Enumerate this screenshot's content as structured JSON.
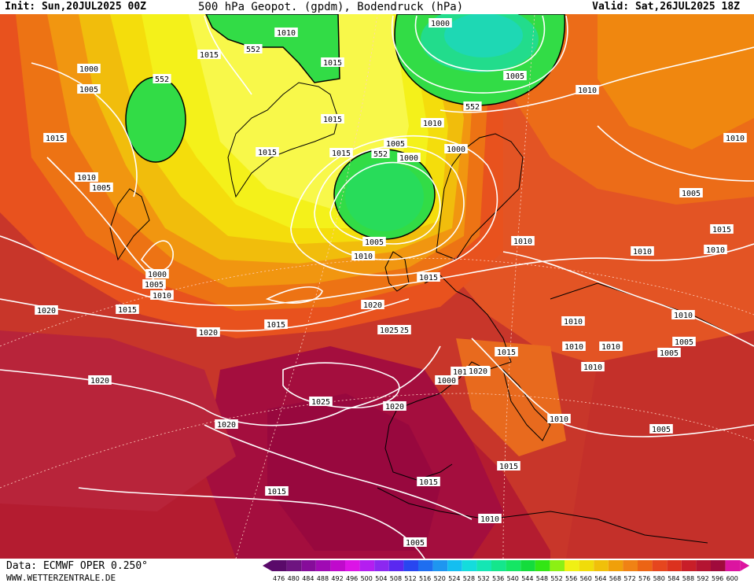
{
  "header": {
    "init": "Init: Sun,20JUL2025 00Z",
    "title": "500 hPa Geopot. (gpdm), Bodendruck (hPa)",
    "valid": "Valid: Sat,26JUL2025 18Z"
  },
  "footer": {
    "source": "Data: ECMWF OPER 0.250°",
    "website": "WWW.WETTERZENTRALE.DE"
  },
  "legend": {
    "values": [
      "476",
      "480",
      "484",
      "488",
      "492",
      "496",
      "500",
      "504",
      "508",
      "512",
      "516",
      "520",
      "524",
      "528",
      "532",
      "536",
      "540",
      "544",
      "548",
      "552",
      "556",
      "560",
      "564",
      "568",
      "572",
      "576",
      "580",
      "584",
      "588",
      "592",
      "596",
      "600"
    ],
    "colors": [
      "#5a0a6a",
      "#6e1480",
      "#860c9a",
      "#a00ab4",
      "#c00acc",
      "#dc14e6",
      "#b41ef0",
      "#8c28f0",
      "#5a28f0",
      "#2846f0",
      "#1e6ef0",
      "#1e96f0",
      "#14bef0",
      "#14dcdc",
      "#14e6b4",
      "#14e68c",
      "#14e664",
      "#14dc3c",
      "#32e614",
      "#8cf014",
      "#f0f014",
      "#f0dc0a",
      "#f0c00a",
      "#f0a00a",
      "#f08214",
      "#ec6414",
      "#e6461e",
      "#dc321e",
      "#c81e28",
      "#b41432",
      "#a00a3c",
      "#dc14a0"
    ]
  },
  "contour_labels": [
    {
      "text": "1000"
    },
    {
      "text": "1005"
    },
    {
      "text": "1010"
    },
    {
      "text": "1015"
    },
    {
      "text": "1020"
    },
    {
      "text": "1025"
    },
    {
      "text": "1015"
    },
    {
      "text": "1010"
    },
    {
      "text": "552"
    },
    {
      "text": "552"
    },
    {
      "text": "552"
    },
    {
      "text": "552"
    },
    {
      "text": "1015"
    },
    {
      "text": "1015"
    },
    {
      "text": "1000"
    },
    {
      "text": "1005"
    },
    {
      "text": "1000"
    },
    {
      "text": "1005"
    },
    {
      "text": "1010"
    },
    {
      "text": "1010"
    },
    {
      "text": "1015"
    },
    {
      "text": "1020"
    },
    {
      "text": "1025"
    },
    {
      "text": "1020"
    },
    {
      "text": "1015"
    },
    {
      "text": "1010"
    },
    {
      "text": "1005"
    },
    {
      "text": "1000"
    },
    {
      "text": "1010"
    },
    {
      "text": "1005"
    },
    {
      "text": "1010"
    },
    {
      "text": "1015"
    },
    {
      "text": "1020"
    },
    {
      "text": "1020"
    },
    {
      "text": "1015"
    },
    {
      "text": "1010"
    },
    {
      "text": "1005"
    },
    {
      "text": "1010"
    },
    {
      "text": "1010"
    },
    {
      "text": "1010"
    },
    {
      "text": "1015"
    },
    {
      "text": "1010"
    },
    {
      "text": "1000"
    },
    {
      "text": "1005"
    },
    {
      "text": "1010"
    },
    {
      "text": "1015"
    },
    {
      "text": "1010"
    },
    {
      "text": "1010"
    },
    {
      "text": "1005"
    },
    {
      "text": "1010"
    },
    {
      "text": "1015"
    },
    {
      "text": "1005"
    },
    {
      "text": "1010"
    },
    {
      "text": "1020"
    },
    {
      "text": "1015"
    },
    {
      "text": "1010"
    },
    {
      "text": "1005"
    },
    {
      "text": "1015"
    },
    {
      "text": "1015"
    },
    {
      "text": "1010"
    },
    {
      "text": "1000"
    },
    {
      "text": "1005"
    },
    {
      "text": "1020"
    },
    {
      "text": "1025"
    },
    {
      "text": "1020"
    }
  ]
}
